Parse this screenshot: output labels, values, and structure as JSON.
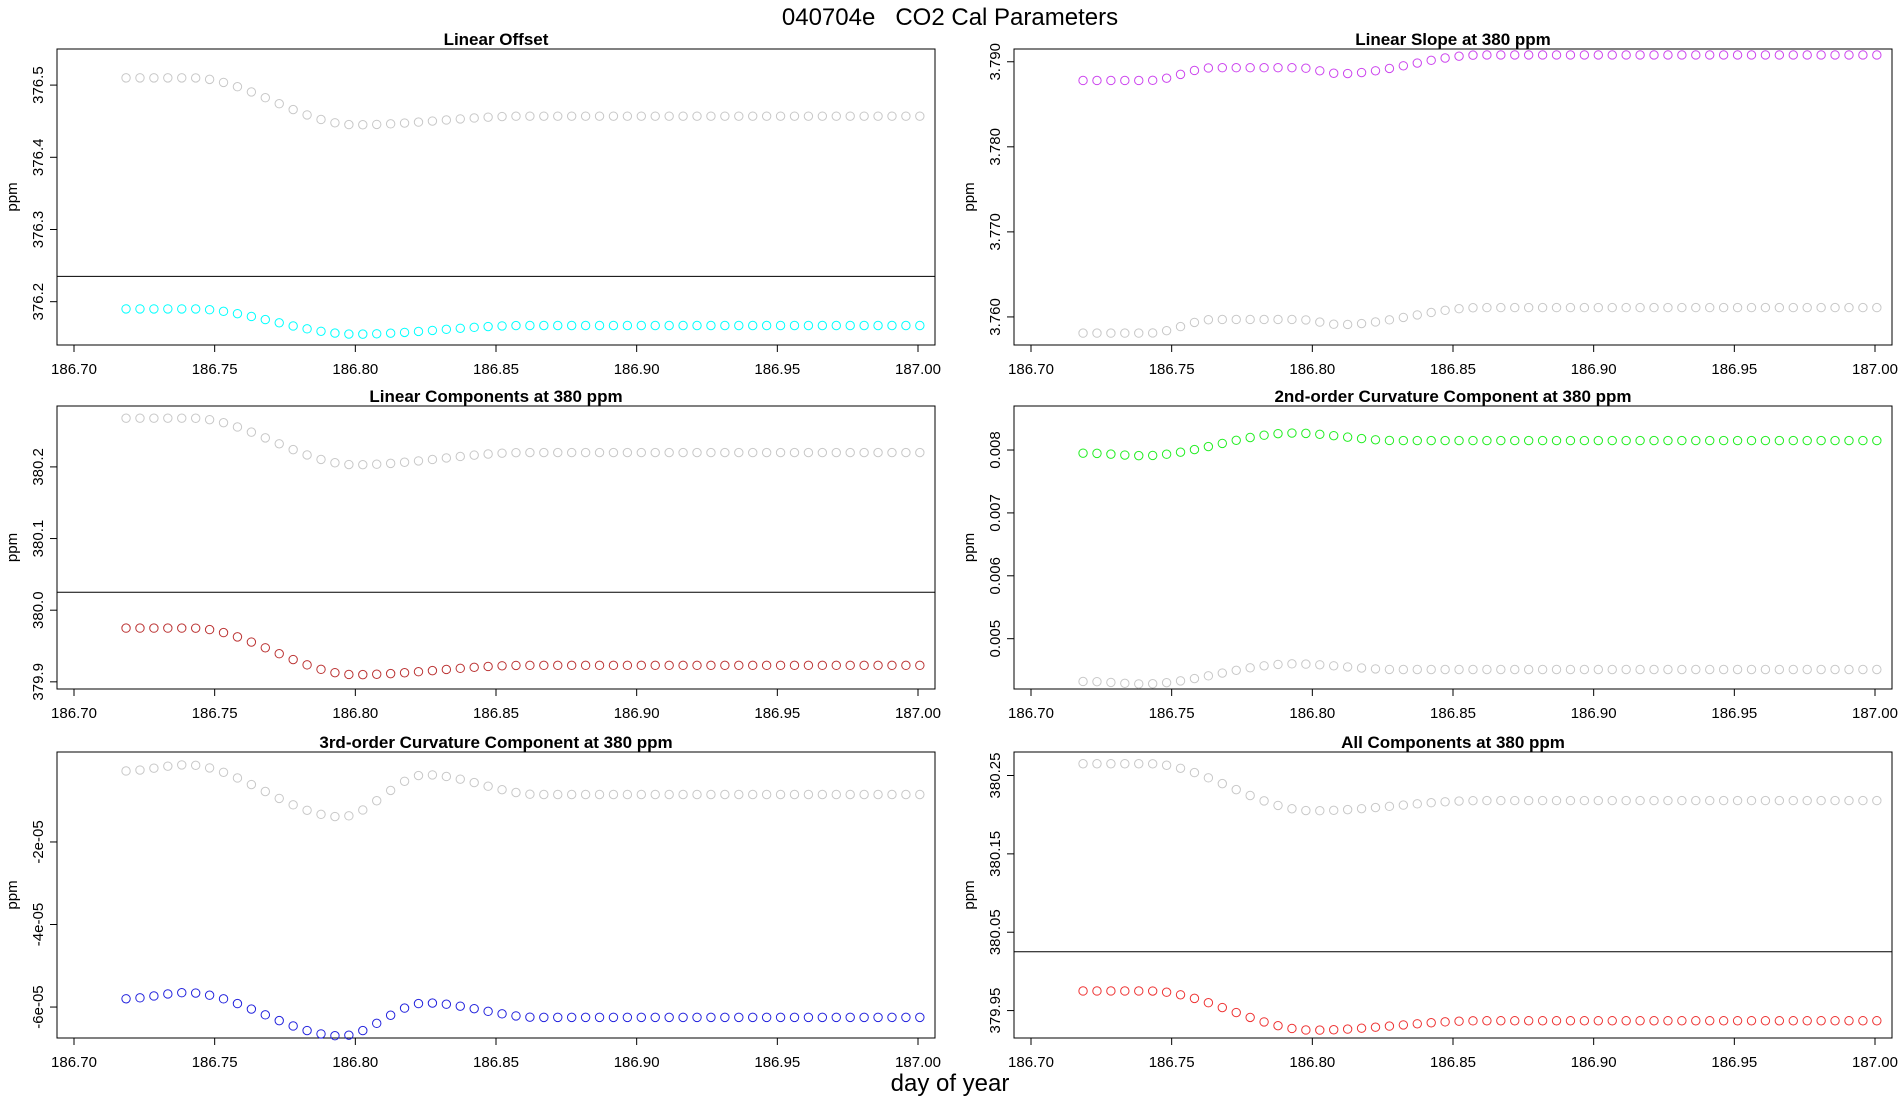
{
  "figure": {
    "run_id": "040704e",
    "title": "CO2 Cal Parameters",
    "xlabel": "day of year"
  },
  "chart_data": [
    {
      "type": "scatter",
      "title": "Linear Offset",
      "ylabel": "ppm",
      "xlim": [
        186.7,
        187.0
      ],
      "ylim": [
        376.14,
        376.55
      ],
      "xticks": [
        186.7,
        186.75,
        186.8,
        186.85,
        186.9,
        186.95,
        187.0
      ],
      "xtick_labels": [
        "186.70",
        "186.75",
        "186.80",
        "186.85",
        "186.90",
        "186.95",
        "187.00"
      ],
      "yticks": [
        376.2,
        376.3,
        376.4,
        376.5
      ],
      "ytick_labels": [
        "376.2",
        "376.3",
        "376.4",
        "376.5"
      ],
      "hline": 376.235,
      "reference_series": {
        "color": "#c8c8c8",
        "y0": 376.51,
        "y_min": 376.445,
        "y_end": 376.457,
        "y_mid": 376.452
      },
      "series": [
        {
          "color": "#00ffff",
          "y0": 376.19,
          "y_min": 376.155,
          "y_end": 376.167,
          "y_mid": 376.163
        }
      ]
    },
    {
      "type": "scatter",
      "title": "Linear Slope at 380 ppm",
      "ylabel": "ppm",
      "xlim": [
        186.7,
        187.0
      ],
      "ylim": [
        3.7567,
        3.7915
      ],
      "xticks": [
        186.7,
        186.75,
        186.8,
        186.85,
        186.9,
        186.95,
        187.0
      ],
      "xtick_labels": [
        "186.70",
        "186.75",
        "186.80",
        "186.85",
        "186.90",
        "186.95",
        "187.00"
      ],
      "yticks": [
        3.76,
        3.77,
        3.78,
        3.79
      ],
      "ytick_labels": [
        "3.760",
        "3.770",
        "3.780",
        "3.790"
      ],
      "hline": null,
      "reference_series": {
        "color": "#c8c8c8",
        "y0": 3.7581,
        "y_bump": 3.7597,
        "y_dip": 3.7591,
        "y_end": 3.7611
      },
      "series": [
        {
          "color": "#cc44ee",
          "y0": 3.7878,
          "y_bump": 3.7893,
          "y_dip": 3.7886,
          "y_end": 3.7908
        }
      ]
    },
    {
      "type": "scatter",
      "title": "Linear Components at 380 ppm",
      "ylabel": "ppm",
      "xlim": [
        186.7,
        187.0
      ],
      "ylim": [
        379.89,
        380.285
      ],
      "xticks": [
        186.7,
        186.75,
        186.8,
        186.85,
        186.9,
        186.95,
        187.0
      ],
      "xtick_labels": [
        "186.70",
        "186.75",
        "186.80",
        "186.85",
        "186.90",
        "186.95",
        "187.00"
      ],
      "yticks": [
        379.9,
        380.0,
        380.1,
        380.2
      ],
      "ytick_labels": [
        "379.9",
        "380.0",
        "380.1",
        "380.2"
      ],
      "hline": 380.025,
      "reference_series": {
        "color": "#c8c8c8",
        "y0": 380.268,
        "y_min": 380.203,
        "y_end": 380.22,
        "y_mid": 380.214
      },
      "series": [
        {
          "color": "#bb3333",
          "y0": 379.975,
          "y_min": 379.91,
          "y_end": 379.923,
          "y_mid": 379.919
        }
      ]
    },
    {
      "type": "scatter",
      "title": "2nd-order Curvature Component at 380 ppm",
      "ylabel": "ppm",
      "xlim": [
        186.7,
        187.0
      ],
      "ylim": [
        0.0042,
        0.0087
      ],
      "xticks": [
        186.7,
        186.75,
        186.8,
        186.85,
        186.9,
        186.95,
        187.0
      ],
      "xtick_labels": [
        "186.70",
        "186.75",
        "186.80",
        "186.85",
        "186.90",
        "186.95",
        "187.00"
      ],
      "yticks": [
        0.005,
        0.006,
        0.007,
        0.008
      ],
      "ytick_labels": [
        "0.005",
        "0.006",
        "0.007",
        "0.008"
      ],
      "hline": null,
      "reference_series": {
        "color": "#c8c8c8",
        "y0": 0.00432,
        "y_low": 0.00428,
        "y_peak": 0.0046,
        "y_end": 0.00451
      },
      "series": [
        {
          "color": "#22ee22",
          "y0": 0.00795,
          "y_low": 0.00791,
          "y_peak": 0.00827,
          "y_end": 0.00815
        }
      ]
    },
    {
      "type": "scatter",
      "title": "3rd-order Curvature Component at 380 ppm",
      "ylabel": "ppm",
      "xlim": [
        186.7,
        187.0
      ],
      "ylim": [
        -6.75e-05,
        1.8e-06
      ],
      "xticks": [
        186.7,
        186.75,
        186.8,
        186.85,
        186.9,
        186.95,
        187.0
      ],
      "xtick_labels": [
        "186.70",
        "186.75",
        "186.80",
        "186.85",
        "186.90",
        "186.95",
        "187.00"
      ],
      "yticks": [
        -2e-05,
        -4e-05,
        -6e-05
      ],
      "ytick_labels": [
        "-2e-05",
        "-4e-05",
        "-6e-05"
      ],
      "hline": null,
      "reference_series": {
        "color": "#c8c8c8",
        "y0": -2.8e-06,
        "y_top": -1.3e-06,
        "y_low": -1.39e-05,
        "y_peak": -3.7e-06,
        "y_end": -8.5e-06
      },
      "series": [
        {
          "color": "#2222dd",
          "y0": -5.8e-05,
          "y_top": -5.65e-05,
          "y_low": -6.7e-05,
          "y_peak": -5.9e-05,
          "y_end": -6.25e-05
        }
      ]
    },
    {
      "type": "scatter",
      "title": "All Components at 380 ppm",
      "ylabel": "ppm",
      "xlim": [
        186.7,
        187.0
      ],
      "ylim": [
        379.915,
        380.28
      ],
      "xticks": [
        186.7,
        186.75,
        186.8,
        186.85,
        186.9,
        186.95,
        187.0
      ],
      "xtick_labels": [
        "186.70",
        "186.75",
        "186.80",
        "186.85",
        "186.90",
        "186.95",
        "187.00"
      ],
      "yticks": [
        379.95,
        380.05,
        380.15,
        380.25
      ],
      "ytick_labels": [
        "379.95",
        "380.05",
        "380.15",
        "380.25"
      ],
      "hline": 380.025,
      "reference_series": {
        "color": "#c8c8c8",
        "y0": 380.265,
        "y_min": 380.205,
        "y_end": 380.218,
        "y_mid": 380.216
      },
      "series": [
        {
          "color": "#ee3333",
          "y0": 379.975,
          "y_min": 379.925,
          "y_end": 379.937,
          "y_mid": 379.935
        }
      ]
    }
  ]
}
